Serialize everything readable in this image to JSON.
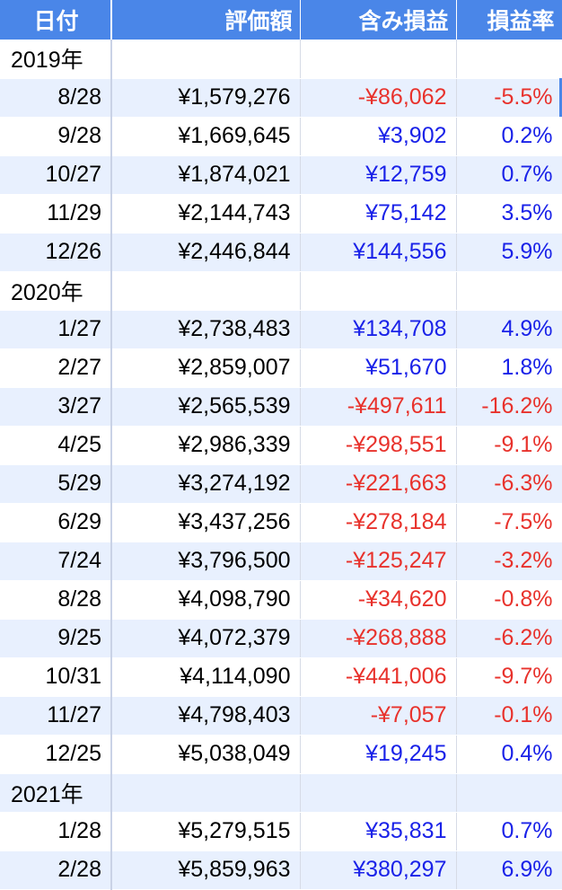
{
  "header": {
    "date": "日付",
    "value": "評価額",
    "gain": "含み損益",
    "rate": "損益率"
  },
  "colors": {
    "header_bg": "#4a86e8",
    "stripe": "#e8f0fe",
    "negative": "#e8322c",
    "positive": "#1a22e8"
  },
  "rows": [
    {
      "type": "year",
      "date": "2019年",
      "value": "",
      "gain": "",
      "rate": "",
      "sign": ""
    },
    {
      "type": "data",
      "date": "8/28",
      "value": "¥1,579,276",
      "gain": "-¥86,062",
      "rate": "-5.5%",
      "sign": "neg"
    },
    {
      "type": "data",
      "date": "9/28",
      "value": "¥1,669,645",
      "gain": "¥3,902",
      "rate": "0.2%",
      "sign": "pos"
    },
    {
      "type": "data",
      "date": "10/27",
      "value": "¥1,874,021",
      "gain": "¥12,759",
      "rate": "0.7%",
      "sign": "pos"
    },
    {
      "type": "data",
      "date": "11/29",
      "value": "¥2,144,743",
      "gain": "¥75,142",
      "rate": "3.5%",
      "sign": "pos"
    },
    {
      "type": "data",
      "date": "12/26",
      "value": "¥2,446,844",
      "gain": "¥144,556",
      "rate": "5.9%",
      "sign": "pos"
    },
    {
      "type": "year",
      "date": "2020年",
      "value": "",
      "gain": "",
      "rate": "",
      "sign": ""
    },
    {
      "type": "data",
      "date": "1/27",
      "value": "¥2,738,483",
      "gain": "¥134,708",
      "rate": "4.9%",
      "sign": "pos"
    },
    {
      "type": "data",
      "date": "2/27",
      "value": "¥2,859,007",
      "gain": "¥51,670",
      "rate": "1.8%",
      "sign": "pos"
    },
    {
      "type": "data",
      "date": "3/27",
      "value": "¥2,565,539",
      "gain": "-¥497,611",
      "rate": "-16.2%",
      "sign": "neg"
    },
    {
      "type": "data",
      "date": "4/25",
      "value": "¥2,986,339",
      "gain": "-¥298,551",
      "rate": "-9.1%",
      "sign": "neg"
    },
    {
      "type": "data",
      "date": "5/29",
      "value": "¥3,274,192",
      "gain": "-¥221,663",
      "rate": "-6.3%",
      "sign": "neg"
    },
    {
      "type": "data",
      "date": "6/29",
      "value": "¥3,437,256",
      "gain": "-¥278,184",
      "rate": "-7.5%",
      "sign": "neg"
    },
    {
      "type": "data",
      "date": "7/24",
      "value": "¥3,796,500",
      "gain": "-¥125,247",
      "rate": "-3.2%",
      "sign": "neg"
    },
    {
      "type": "data",
      "date": "8/28",
      "value": "¥4,098,790",
      "gain": "-¥34,620",
      "rate": "-0.8%",
      "sign": "neg"
    },
    {
      "type": "data",
      "date": "9/25",
      "value": "¥4,072,379",
      "gain": "-¥268,888",
      "rate": "-6.2%",
      "sign": "neg"
    },
    {
      "type": "data",
      "date": "10/31",
      "value": "¥4,114,090",
      "gain": "-¥441,006",
      "rate": "-9.7%",
      "sign": "neg"
    },
    {
      "type": "data",
      "date": "11/27",
      "value": "¥4,798,403",
      "gain": "-¥7,057",
      "rate": "-0.1%",
      "sign": "neg"
    },
    {
      "type": "data",
      "date": "12/25",
      "value": "¥5,038,049",
      "gain": "¥19,245",
      "rate": "0.4%",
      "sign": "pos"
    },
    {
      "type": "year",
      "date": "2021年",
      "value": "",
      "gain": "",
      "rate": "",
      "sign": ""
    },
    {
      "type": "data",
      "date": "1/28",
      "value": "¥5,279,515",
      "gain": "¥35,831",
      "rate": "0.7%",
      "sign": "pos"
    },
    {
      "type": "data",
      "date": "2/28",
      "value": "¥5,859,963",
      "gain": "¥380,297",
      "rate": "6.9%",
      "sign": "pos"
    }
  ]
}
